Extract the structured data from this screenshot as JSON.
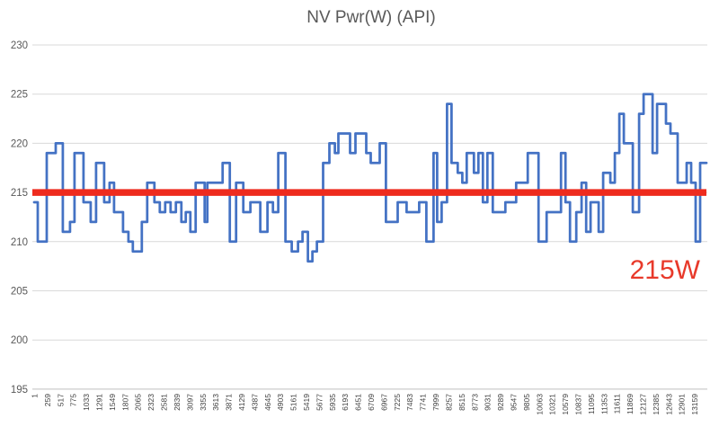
{
  "page": {
    "background": "#ffffff"
  },
  "chart_data": {
    "type": "line",
    "title": "NV Pwr(W) (API)",
    "xlabel": "",
    "ylabel": "",
    "legend": false,
    "grid": true,
    "y_ticks": [
      195,
      200,
      205,
      210,
      215,
      220,
      225,
      230
    ],
    "ylim": [
      195,
      231
    ],
    "x_range": [
      1,
      13416
    ],
    "x_tick_labels": [
      "1",
      "259",
      "517",
      "775",
      "1033",
      "1291",
      "1549",
      "1807",
      "2065",
      "2323",
      "2581",
      "2839",
      "3097",
      "3355",
      "3613",
      "3871",
      "4129",
      "4387",
      "4645",
      "4903",
      "5161",
      "5419",
      "5677",
      "5935",
      "6193",
      "6451",
      "6709",
      "6967",
      "7225",
      "7483",
      "7741",
      "7999",
      "8257",
      "8515",
      "8773",
      "9031",
      "9289",
      "9547",
      "9805",
      "10063",
      "10321",
      "10579",
      "10837",
      "11095",
      "11353",
      "11611",
      "11869",
      "12127",
      "12385",
      "12643",
      "12901",
      "13159"
    ],
    "series": [
      {
        "name": "NV Pwr(W) (API)",
        "color": "#4472C4",
        "steps": [
          [
            1,
            214
          ],
          [
            73,
            210
          ],
          [
            251,
            219
          ],
          [
            430,
            220
          ],
          [
            573,
            211
          ],
          [
            716,
            212
          ],
          [
            806,
            219
          ],
          [
            985,
            214
          ],
          [
            1128,
            212
          ],
          [
            1235,
            218
          ],
          [
            1396,
            214
          ],
          [
            1503,
            216
          ],
          [
            1593,
            213
          ],
          [
            1772,
            211
          ],
          [
            1879,
            210
          ],
          [
            1968,
            209
          ],
          [
            2147,
            212
          ],
          [
            2254,
            216
          ],
          [
            2397,
            214
          ],
          [
            2505,
            213
          ],
          [
            2612,
            214
          ],
          [
            2719,
            213
          ],
          [
            2826,
            214
          ],
          [
            2934,
            212
          ],
          [
            3023,
            213
          ],
          [
            3113,
            211
          ],
          [
            3220,
            216
          ],
          [
            3399,
            212
          ],
          [
            3453,
            216
          ],
          [
            3757,
            218
          ],
          [
            3900,
            210
          ],
          [
            4025,
            216
          ],
          [
            4168,
            213
          ],
          [
            4311,
            214
          ],
          [
            4508,
            211
          ],
          [
            4651,
            214
          ],
          [
            4759,
            213
          ],
          [
            4866,
            219
          ],
          [
            5009,
            210
          ],
          [
            5134,
            209
          ],
          [
            5259,
            210
          ],
          [
            5349,
            211
          ],
          [
            5456,
            208
          ],
          [
            5546,
            209
          ],
          [
            5635,
            210
          ],
          [
            5760,
            218
          ],
          [
            5885,
            220
          ],
          [
            5993,
            219
          ],
          [
            6064,
            221
          ],
          [
            6297,
            219
          ],
          [
            6404,
            221
          ],
          [
            6619,
            219
          ],
          [
            6708,
            218
          ],
          [
            6887,
            220
          ],
          [
            7012,
            212
          ],
          [
            7245,
            214
          ],
          [
            7424,
            213
          ],
          [
            7674,
            214
          ],
          [
            7817,
            210
          ],
          [
            7960,
            219
          ],
          [
            8032,
            212
          ],
          [
            8121,
            214
          ],
          [
            8229,
            224
          ],
          [
            8318,
            218
          ],
          [
            8443,
            217
          ],
          [
            8533,
            216
          ],
          [
            8622,
            219
          ],
          [
            8765,
            217
          ],
          [
            8855,
            219
          ],
          [
            8944,
            214
          ],
          [
            9033,
            219
          ],
          [
            9141,
            213
          ],
          [
            9391,
            214
          ],
          [
            9606,
            216
          ],
          [
            9838,
            219
          ],
          [
            10053,
            210
          ],
          [
            10214,
            213
          ],
          [
            10500,
            219
          ],
          [
            10590,
            214
          ],
          [
            10679,
            210
          ],
          [
            10804,
            213
          ],
          [
            10911,
            216
          ],
          [
            11001,
            211
          ],
          [
            11090,
            214
          ],
          [
            11251,
            211
          ],
          [
            11341,
            217
          ],
          [
            11484,
            216
          ],
          [
            11573,
            219
          ],
          [
            11663,
            223
          ],
          [
            11752,
            220
          ],
          [
            11931,
            213
          ],
          [
            12056,
            223
          ],
          [
            12146,
            225
          ],
          [
            12325,
            219
          ],
          [
            12414,
            224
          ],
          [
            12593,
            222
          ],
          [
            12682,
            221
          ],
          [
            12825,
            216
          ],
          [
            13004,
            218
          ],
          [
            13094,
            216
          ],
          [
            13183,
            210
          ],
          [
            13272,
            218
          ]
        ]
      }
    ],
    "reference_line": {
      "y": 215,
      "color": "#EE2B1E",
      "label": "215W"
    },
    "annotation": {
      "text": "215W",
      "color": "#E8392A"
    },
    "colors": {
      "gridline": "#D9D9D9",
      "axis_line": "#BFBFBF",
      "y_tick_label": "#595959",
      "x_tick_label": "#404040",
      "title": "#595959"
    }
  }
}
